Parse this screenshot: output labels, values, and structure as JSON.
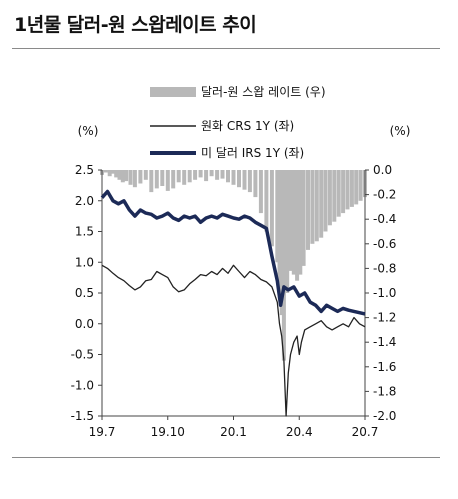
{
  "chart_data": {
    "type": "bar",
    "title": "1년물 달러-원 스왑레이트 추이",
    "left_axis_unit": "(%)",
    "right_axis_unit": "(%)",
    "x_ticks": [
      "19.7",
      "19.10",
      "20.1",
      "20.4",
      "20.7"
    ],
    "y_left": {
      "min": -1.5,
      "max": 2.5,
      "ticks": [
        "2.5",
        "2.0",
        "1.5",
        "1.0",
        "0.5",
        "0.0",
        "-0.5",
        "-1.0",
        "-1.5"
      ]
    },
    "y_right": {
      "min": -2.0,
      "max": 0.0,
      "ticks": [
        "0.0",
        "-0.2",
        "-0.4",
        "-0.6",
        "-0.8",
        "-1.0",
        "-1.2",
        "-1.4",
        "-1.6",
        "-1.8",
        "-2.0"
      ]
    },
    "legend": "top-right",
    "grid": false,
    "series": [
      {
        "name": "달러-원 스왑 레이트 (우)",
        "kind": "bar",
        "axis": "right",
        "color": "#b8b8b8",
        "x": [
          0.0,
          0.18,
          0.35,
          0.5,
          0.65,
          0.8,
          0.95,
          1.1,
          1.3,
          1.5,
          1.75,
          2.0,
          2.25,
          2.5,
          2.75,
          3.0,
          3.25,
          3.5,
          3.75,
          4.0,
          4.25,
          4.5,
          4.75,
          5.0,
          5.25,
          5.5,
          5.75,
          6.0,
          6.25,
          6.5,
          6.75,
          7.0,
          7.25,
          7.5,
          7.75,
          8.0,
          8.1,
          8.2,
          8.3,
          8.45,
          8.6,
          8.75,
          8.9,
          9.05,
          9.2,
          9.4,
          9.6,
          9.8,
          10.0,
          10.2,
          10.4,
          10.6,
          10.8,
          11.0,
          11.2,
          11.4,
          11.6,
          11.8,
          12.0
        ],
        "y": [
          -0.04,
          -0.02,
          -0.05,
          -0.03,
          -0.06,
          -0.08,
          -0.1,
          -0.09,
          -0.12,
          -0.14,
          -0.11,
          -0.08,
          -0.18,
          -0.15,
          -0.13,
          -0.17,
          -0.15,
          -0.1,
          -0.12,
          -0.1,
          -0.08,
          -0.06,
          -0.09,
          -0.05,
          -0.08,
          -0.07,
          -0.1,
          -0.12,
          -0.14,
          -0.16,
          -0.18,
          -0.22,
          -0.35,
          -0.5,
          -0.62,
          -0.75,
          -0.95,
          -1.18,
          -1.55,
          -1.0,
          -0.82,
          -0.85,
          -0.9,
          -0.85,
          -0.78,
          -0.65,
          -0.6,
          -0.58,
          -0.55,
          -0.5,
          -0.45,
          -0.42,
          -0.38,
          -0.35,
          -0.32,
          -0.3,
          -0.28,
          -0.25,
          -0.22
        ]
      },
      {
        "name": "원화 CRS 1Y (좌)",
        "kind": "line",
        "axis": "left",
        "color": "#222222",
        "x": [
          0.0,
          0.25,
          0.5,
          0.75,
          1.0,
          1.25,
          1.5,
          1.75,
          2.0,
          2.25,
          2.5,
          2.75,
          3.0,
          3.25,
          3.5,
          3.75,
          4.0,
          4.25,
          4.5,
          4.75,
          5.0,
          5.25,
          5.5,
          5.75,
          6.0,
          6.25,
          6.5,
          6.75,
          7.0,
          7.25,
          7.5,
          7.75,
          8.0,
          8.1,
          8.2,
          8.3,
          8.4,
          8.5,
          8.6,
          8.75,
          8.9,
          9.0,
          9.1,
          9.25,
          9.5,
          9.75,
          10.0,
          10.25,
          10.5,
          10.75,
          11.0,
          11.25,
          11.5,
          11.75,
          12.0
        ],
        "y": [
          0.95,
          0.9,
          0.82,
          0.75,
          0.7,
          0.62,
          0.55,
          0.6,
          0.7,
          0.72,
          0.85,
          0.8,
          0.75,
          0.6,
          0.52,
          0.55,
          0.65,
          0.72,
          0.8,
          0.78,
          0.85,
          0.8,
          0.9,
          0.82,
          0.95,
          0.85,
          0.75,
          0.85,
          0.8,
          0.72,
          0.68,
          0.6,
          0.35,
          0.0,
          -0.2,
          -0.6,
          -1.5,
          -0.8,
          -0.5,
          -0.3,
          -0.2,
          -0.5,
          -0.3,
          -0.1,
          -0.05,
          0.0,
          0.05,
          -0.05,
          -0.1,
          -0.05,
          0.0,
          -0.05,
          0.1,
          0.0,
          -0.05
        ]
      },
      {
        "name": "미 달러 IRS 1Y (좌)",
        "kind": "line",
        "axis": "left",
        "color": "#1c2a57",
        "x": [
          0.0,
          0.25,
          0.5,
          0.75,
          1.0,
          1.25,
          1.5,
          1.75,
          2.0,
          2.25,
          2.5,
          2.75,
          3.0,
          3.25,
          3.5,
          3.75,
          4.0,
          4.25,
          4.5,
          4.75,
          5.0,
          5.25,
          5.5,
          5.75,
          6.0,
          6.25,
          6.5,
          6.75,
          7.0,
          7.25,
          7.5,
          7.75,
          8.0,
          8.15,
          8.3,
          8.5,
          8.75,
          9.0,
          9.25,
          9.5,
          9.75,
          10.0,
          10.25,
          10.5,
          10.75,
          11.0,
          11.25,
          11.5,
          11.75,
          12.0
        ],
        "y": [
          2.05,
          2.15,
          2.0,
          1.95,
          2.0,
          1.85,
          1.75,
          1.85,
          1.8,
          1.78,
          1.72,
          1.75,
          1.8,
          1.72,
          1.68,
          1.75,
          1.72,
          1.75,
          1.65,
          1.72,
          1.75,
          1.72,
          1.78,
          1.75,
          1.72,
          1.7,
          1.75,
          1.72,
          1.65,
          1.6,
          1.55,
          1.1,
          0.7,
          0.3,
          0.6,
          0.55,
          0.6,
          0.45,
          0.5,
          0.35,
          0.3,
          0.2,
          0.3,
          0.25,
          0.2,
          0.25,
          0.22,
          0.2,
          0.18,
          0.16
        ]
      }
    ]
  }
}
